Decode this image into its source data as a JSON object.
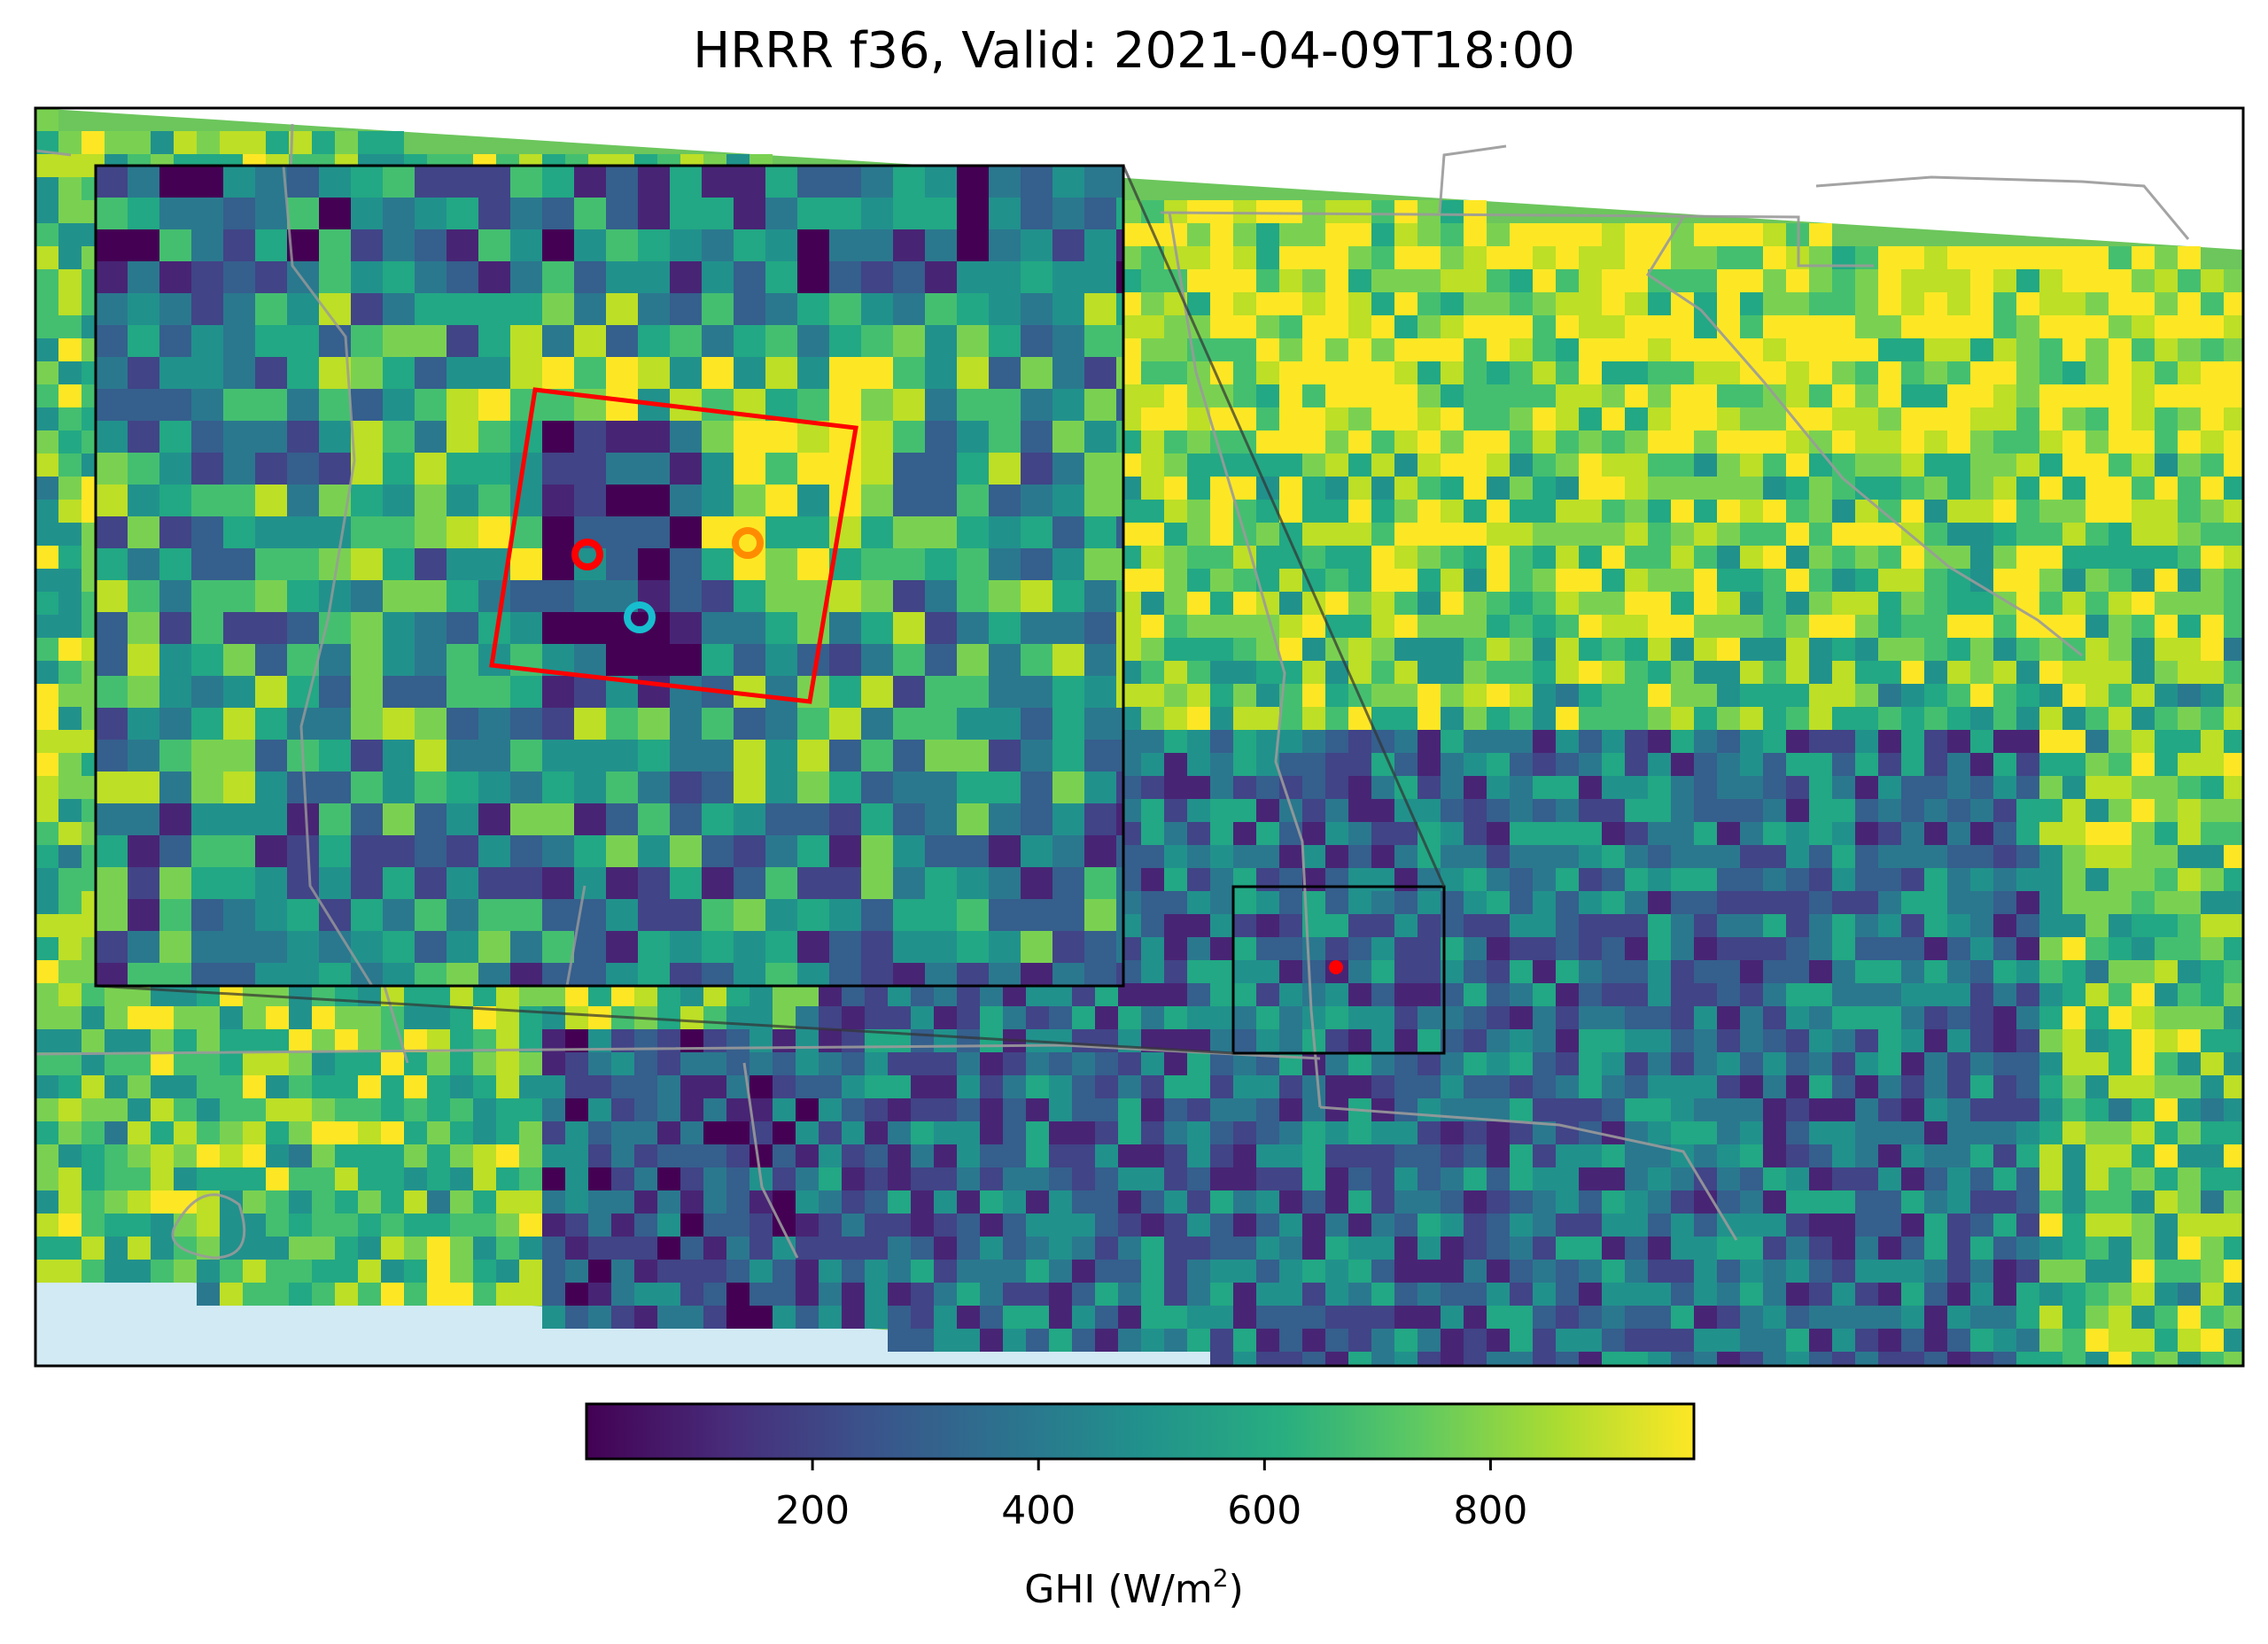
{
  "title": "HRRR f36, Valid: 2021-04-09T18:00",
  "colorbar": {
    "label_prefix": "GHI (W/m",
    "label_sup": "2",
    "label_suffix": ")",
    "ticks": [
      200,
      400,
      600,
      800
    ],
    "tick_labels": [
      "200",
      "400",
      "600",
      "800"
    ],
    "range": [
      0,
      980
    ],
    "colormap": "viridis",
    "colors": [
      "#440154",
      "#3b528b",
      "#21918c",
      "#5ec962",
      "#fde725"
    ]
  },
  "map": {
    "field": "GHI",
    "ocean_color": "#d2eaf4",
    "border_color": "#999999"
  },
  "inset": {
    "frame_color": "#000000",
    "box_color": "#ff0000",
    "markers": [
      {
        "name": "marker-red",
        "color": "#ff0000"
      },
      {
        "name": "marker-orange",
        "color": "#ff8c00"
      },
      {
        "name": "marker-cyan",
        "color": "#17becf"
      }
    ]
  }
}
